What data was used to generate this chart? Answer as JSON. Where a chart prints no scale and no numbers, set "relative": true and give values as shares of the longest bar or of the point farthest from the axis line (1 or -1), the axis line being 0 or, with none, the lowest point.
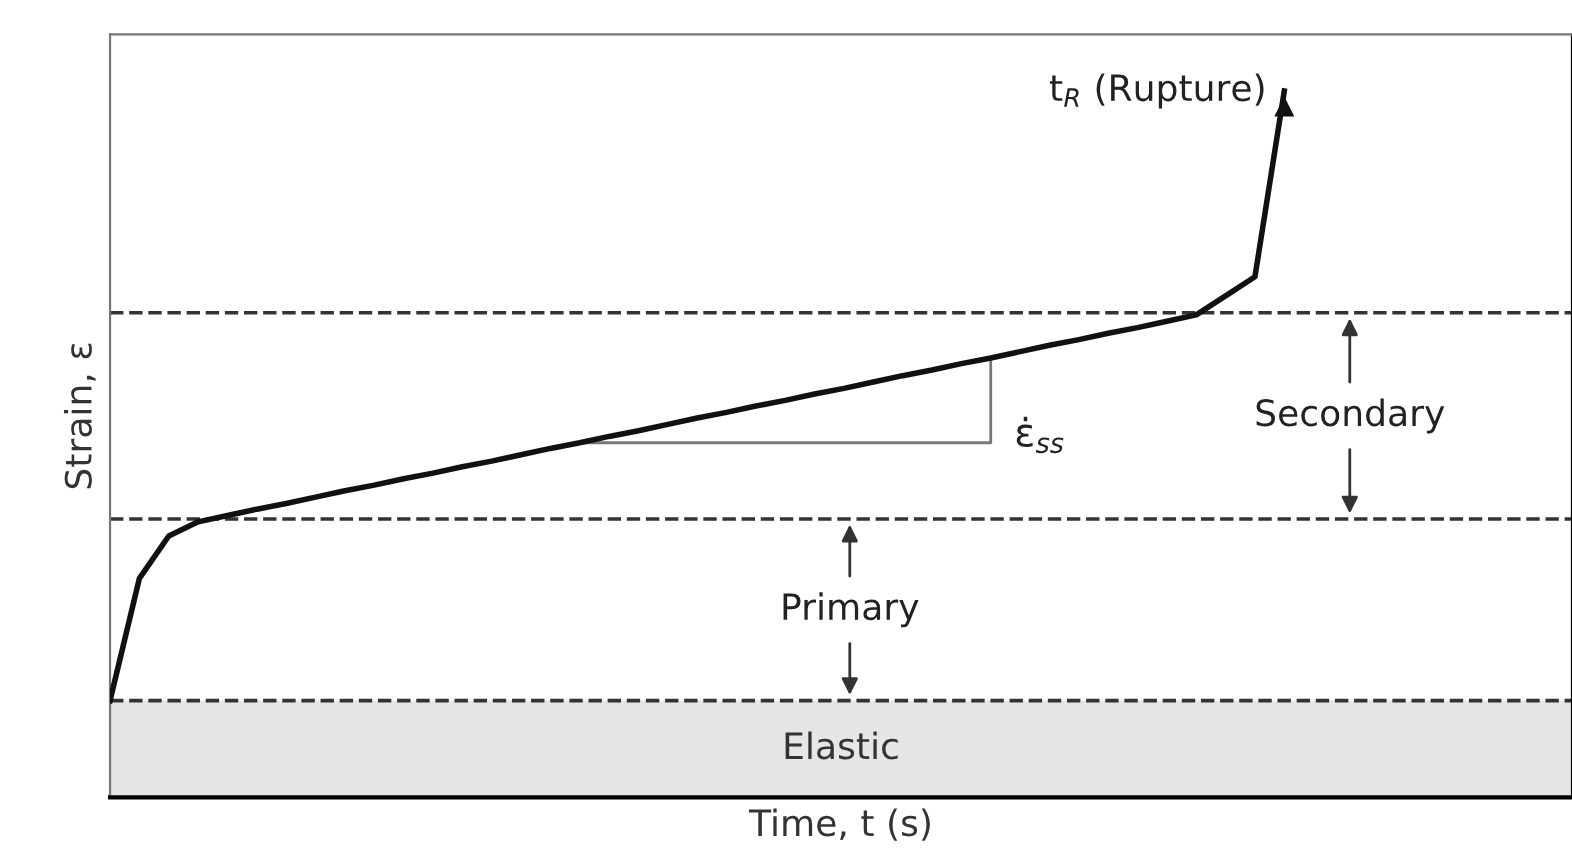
{
  "chart_data": {
    "type": "line",
    "relative": true,
    "xlabel": "Time, t (s)",
    "ylabel": "Strain, ε",
    "categories": [
      null,
      null,
      null,
      null,
      null,
      null,
      null,
      null,
      null,
      null,
      null,
      null,
      null,
      null,
      null,
      null,
      null,
      null,
      null,
      null,
      null,
      null,
      null,
      null,
      null,
      null,
      null,
      null,
      null,
      null,
      null,
      null,
      null,
      null,
      null,
      null,
      null,
      null,
      null,
      null,
      null
    ],
    "series": [
      {
        "color": "#111111",
        "values": [
          0.137,
          0.31,
          0.37,
          0.39,
          0.399,
          0.408,
          0.416,
          0.425,
          0.434,
          0.442,
          0.451,
          0.459,
          0.468,
          0.476,
          0.485,
          0.494,
          0.502,
          0.511,
          0.519,
          0.528,
          0.537,
          0.545,
          0.554,
          0.562,
          0.571,
          0.579,
          0.588,
          0.597,
          0.605,
          0.614,
          0.622,
          0.631,
          0.64,
          0.648,
          0.657,
          0.665,
          0.674,
          0.683,
          0.71,
          0.737,
          1.0
        ]
      }
    ],
    "ref_lines": [
      {
        "axis": "y",
        "value": 0.137,
        "line_style": "dashed",
        "color": "#333333"
      },
      {
        "axis": "y",
        "value": 0.394,
        "line_style": "dashed",
        "color": "#333333"
      },
      {
        "axis": "y",
        "value": 0.686,
        "line_style": "dashed",
        "color": "#333333"
      }
    ],
    "bands": [
      {
        "axis": "y",
        "from": 0,
        "to": 0.137,
        "label": "Elastic",
        "color": "#e6e6e6"
      }
    ],
    "annotations": [
      "t$_{R}$ (Rupture)",
      "Primary",
      "Secondary",
      "ε̇$_{ss}$"
    ],
    "legend": false,
    "marker": "none",
    "line_style": "solid"
  }
}
